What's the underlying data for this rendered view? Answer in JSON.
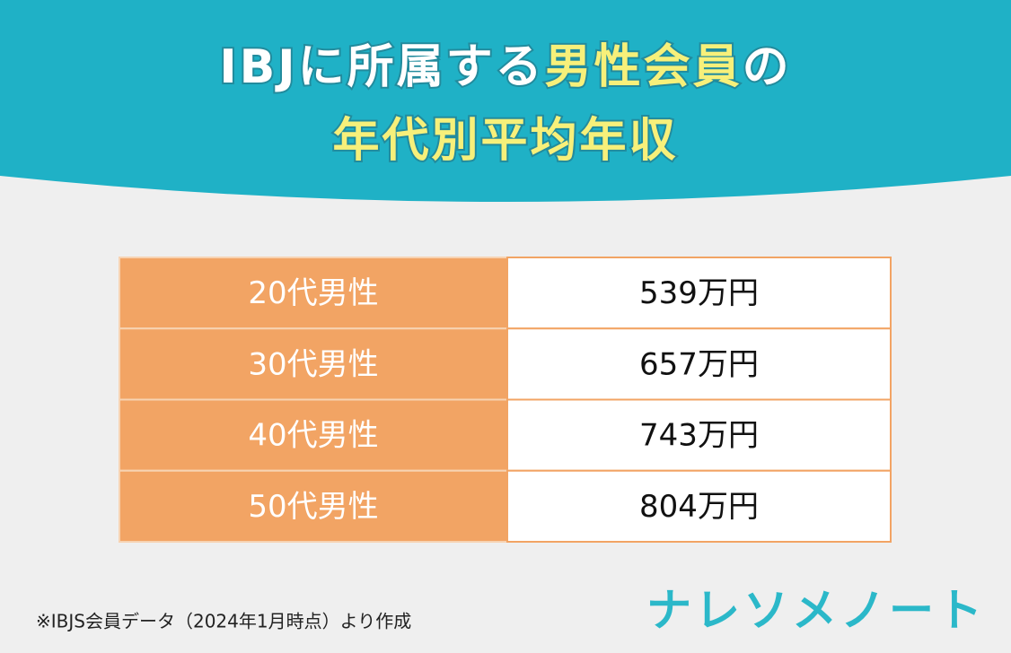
{
  "header": {
    "title_parts": [
      "IBJに所属する",
      "男性会員",
      "の"
    ],
    "title_line2": "年代別平均年収"
  },
  "table": {
    "rows": [
      [
        "20代男性",
        "539万円"
      ],
      [
        "30代男性",
        "657万円"
      ],
      [
        "40代男性",
        "743万円"
      ],
      [
        "50代男性",
        "804万円"
      ]
    ]
  },
  "footnote": "※IBJS会員データ（2024年1月時点）より作成",
  "logo": "ナレソメノート"
}
